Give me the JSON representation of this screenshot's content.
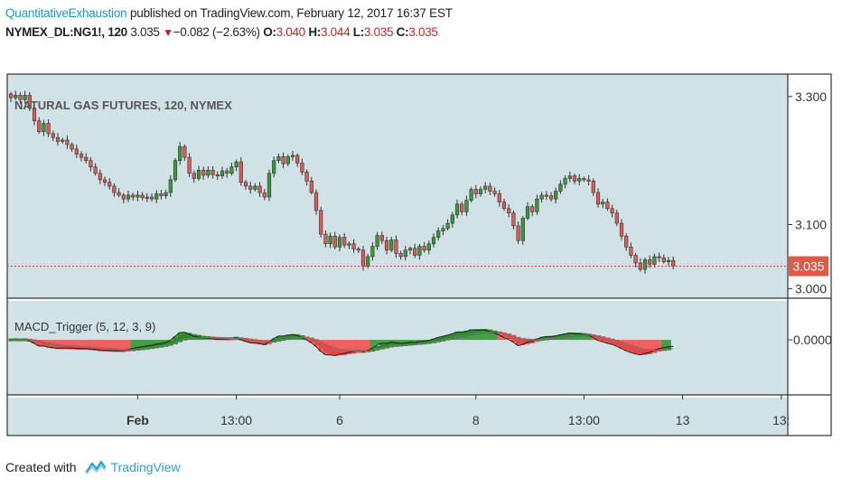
{
  "header": {
    "author": "QuantitativeExhaustion",
    "published": "published on TradingView.com, February 12, 2017 16:37 EST"
  },
  "ticker": {
    "symbol": "NYMEX_DL:NG1!, 120",
    "last": "3.035",
    "change": "−0.082 (−2.63%)",
    "o_label": "O:",
    "o": "3.040",
    "h_label": "H:",
    "h": "3.044",
    "l_label": "L:",
    "l": "3.035",
    "c_label": "C:",
    "c": "3.035"
  },
  "footer": {
    "created_with": "Created with",
    "brand": "TradingView"
  },
  "colors": {
    "up": "#3a9a3a",
    "down": "#e05a5a",
    "pane": "#d1e2e6",
    "frame": "#333333",
    "price_tag": "#e05a4a",
    "macd_green": "#3c9c3c",
    "macd_red": "#ef5a5a"
  },
  "chart_data": [
    {
      "type": "candlestick",
      "title": "NATURAL GAS FUTURES, 120, NYMEX",
      "ylim": [
        2.985,
        3.335
      ],
      "y_ticks": [
        "3.300",
        "3.100",
        "3.000"
      ],
      "last_price_label": "3.035",
      "last_price": 3.035,
      "x_ticks": [
        "Feb",
        "13:00",
        "6",
        "8",
        "13:00",
        "13",
        "13:"
      ],
      "closes": [
        3.298,
        3.302,
        3.295,
        3.302,
        3.282,
        3.262,
        3.245,
        3.258,
        3.242,
        3.236,
        3.23,
        3.232,
        3.225,
        3.218,
        3.21,
        3.205,
        3.2,
        3.19,
        3.18,
        3.17,
        3.166,
        3.16,
        3.15,
        3.146,
        3.14,
        3.146,
        3.143,
        3.146,
        3.142,
        3.143,
        3.14,
        3.148,
        3.145,
        3.15,
        3.17,
        3.2,
        3.222,
        3.205,
        3.18,
        3.172,
        3.185,
        3.177,
        3.185,
        3.178,
        3.176,
        3.184,
        3.18,
        3.19,
        3.198,
        3.166,
        3.16,
        3.155,
        3.16,
        3.15,
        3.143,
        3.18,
        3.2,
        3.206,
        3.195,
        3.206,
        3.208,
        3.196,
        3.182,
        3.168,
        3.15,
        3.122,
        3.085,
        3.07,
        3.082,
        3.065,
        3.08,
        3.068,
        3.07,
        3.062,
        3.06,
        3.035,
        3.05,
        3.066,
        3.083,
        3.075,
        3.06,
        3.076,
        3.055,
        3.05,
        3.06,
        3.063,
        3.052,
        3.066,
        3.06,
        3.07,
        3.08,
        3.09,
        3.094,
        3.102,
        3.115,
        3.132,
        3.12,
        3.138,
        3.155,
        3.148,
        3.155,
        3.16,
        3.152,
        3.148,
        3.135,
        3.125,
        3.118,
        3.098,
        3.075,
        3.11,
        3.128,
        3.12,
        3.14,
        3.146,
        3.145,
        3.14,
        3.152,
        3.163,
        3.172,
        3.176,
        3.168,
        3.172,
        3.17,
        3.168,
        3.15,
        3.132,
        3.135,
        3.125,
        3.118,
        3.102,
        3.082,
        3.065,
        3.052,
        3.04,
        3.03,
        3.045,
        3.038,
        3.05,
        3.048,
        3.042,
        3.044,
        3.035
      ]
    },
    {
      "type": "macd",
      "title": "MACD_Trigger (5, 12, 3, 9)",
      "ylim": [
        -0.12,
        0.085
      ],
      "y_ticks": [
        "0.0000"
      ],
      "x_ticks": [
        "Feb",
        "13:00",
        "6",
        "8",
        "13:00",
        "13",
        "13:"
      ]
    }
  ]
}
